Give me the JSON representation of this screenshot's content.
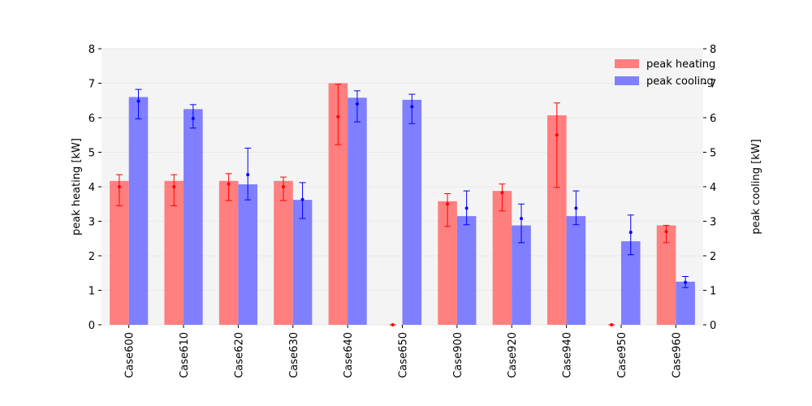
{
  "chart_data": {
    "type": "bar",
    "categories": [
      "Case600",
      "Case610",
      "Case620",
      "Case630",
      "Case640",
      "Case650",
      "Case900",
      "Case920",
      "Case940",
      "Case950",
      "Case960"
    ],
    "series": [
      {
        "name": "peak heating",
        "axis": "left",
        "color": "#ff7f7f",
        "values": [
          4.17,
          4.17,
          4.17,
          4.17,
          7.0,
          0,
          3.58,
          3.88,
          6.07,
          0,
          2.88
        ],
        "point_color": "#ff0000",
        "points": [
          4.0,
          4.0,
          4.08,
          4.0,
          6.03,
          0,
          3.5,
          3.83,
          5.5,
          0,
          2.7
        ],
        "err_low": [
          3.45,
          3.45,
          3.6,
          3.6,
          5.22,
          0,
          2.85,
          3.3,
          3.98,
          0,
          2.38
        ],
        "err_high": [
          4.35,
          4.35,
          4.38,
          4.28,
          6.97,
          0,
          3.8,
          4.08,
          6.43,
          0,
          2.88
        ]
      },
      {
        "name": "peak cooling",
        "axis": "right",
        "color": "#7f7fff",
        "values": [
          6.6,
          6.25,
          4.07,
          3.62,
          6.58,
          6.52,
          3.15,
          2.88,
          3.15,
          2.42,
          1.25
        ],
        "point_color": "#0000ff",
        "points": [
          6.48,
          5.98,
          4.35,
          3.63,
          6.4,
          6.32,
          3.38,
          3.08,
          3.38,
          2.68,
          1.23
        ],
        "err_low": [
          5.97,
          5.7,
          3.62,
          3.08,
          5.88,
          5.83,
          2.9,
          2.38,
          2.9,
          2.03,
          1.08
        ],
        "err_high": [
          6.82,
          6.38,
          5.12,
          4.12,
          6.78,
          6.68,
          3.88,
          3.5,
          3.88,
          3.18,
          1.4
        ]
      }
    ],
    "ylabel": "peak heating [kW]",
    "y2label": "peak cooling [kW]",
    "ylim": [
      0,
      8
    ],
    "y2lim": [
      0,
      8
    ],
    "yticks": [
      0,
      1,
      2,
      3,
      4,
      5,
      6,
      7,
      8
    ],
    "grid": true,
    "legend": "top-right",
    "plot_background": "#f4f4f4",
    "grid_color": "#e9e9e9"
  }
}
